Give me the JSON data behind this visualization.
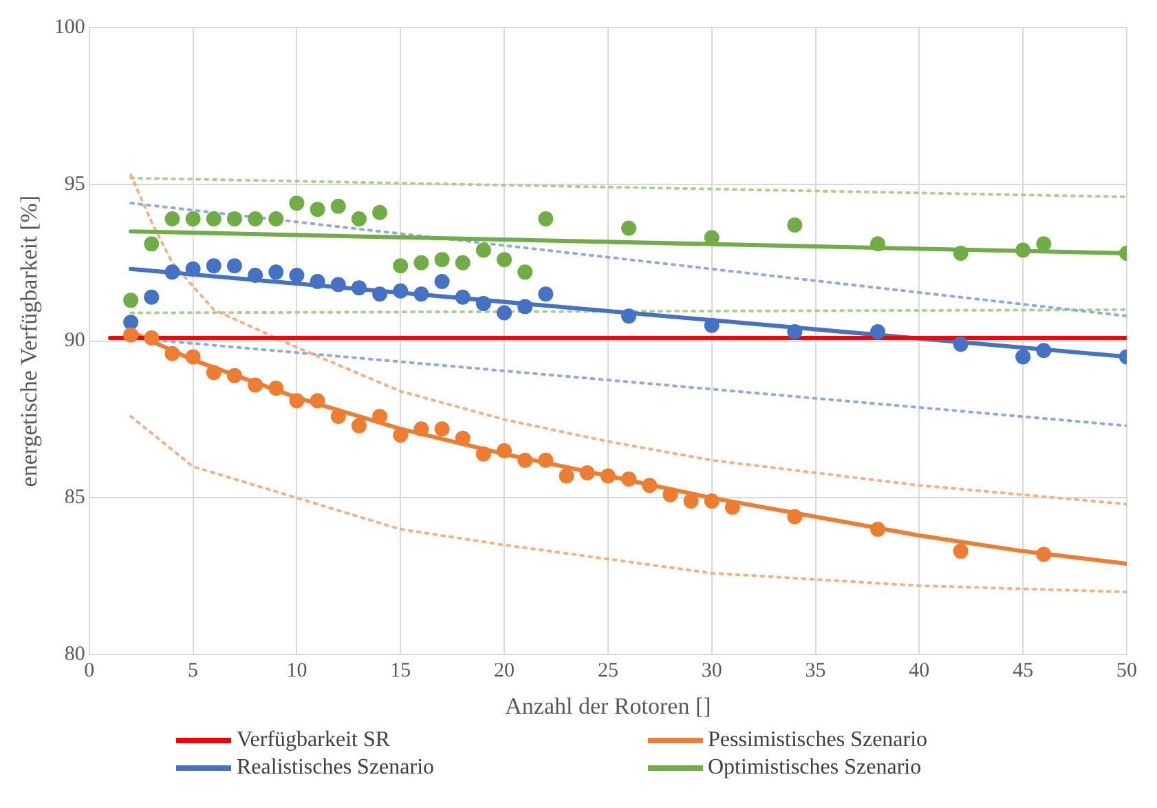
{
  "chart_data": {
    "type": "scatter",
    "xlabel": "Anzahl der Rotoren []",
    "ylabel": "energetische Verfügbarkeit [%]",
    "xlim": [
      0,
      50
    ],
    "xticks": [
      0,
      5,
      10,
      15,
      20,
      25,
      30,
      35,
      40,
      45,
      50
    ],
    "ylim": [
      80,
      100
    ],
    "yticks": [
      80,
      85,
      90,
      95,
      100
    ],
    "grid": true,
    "legend": "bottom",
    "series": [
      {
        "name": "Verfügbarkeit SR",
        "type": "line",
        "marker": "none",
        "line_style": "solid",
        "color": "#ff0000",
        "x": [
          1,
          50
        ],
        "values": [
          90.1,
          90.1
        ]
      },
      {
        "name": "Pessimistisches Szenario",
        "type": "line",
        "marker": "none",
        "line_style": "solid",
        "color": "#ed7d31",
        "x": [
          2,
          5,
          10,
          15,
          20,
          25,
          30,
          35,
          40,
          45,
          50
        ],
        "values": [
          90.3,
          89.4,
          88.2,
          87.2,
          86.4,
          85.7,
          85.0,
          84.4,
          83.8,
          83.3,
          82.9
        ]
      },
      {
        "name": "Realistisches Szenario",
        "type": "line",
        "marker": "none",
        "line_style": "solid",
        "color": "#4472c4",
        "x": [
          2,
          50
        ],
        "values": [
          92.3,
          89.5
        ]
      },
      {
        "name": "Optimistisches Szenario",
        "type": "line",
        "marker": "none",
        "line_style": "solid",
        "color": "#70ad47",
        "x": [
          2,
          50
        ],
        "values": [
          93.5,
          92.8
        ]
      },
      {
        "type": "scatter",
        "marker": "circle",
        "color": "#ed7d31",
        "x": [
          2,
          3,
          4,
          5,
          6,
          7,
          8,
          9,
          10,
          11,
          12,
          13,
          14,
          15,
          16,
          17,
          18,
          19,
          20,
          21,
          22,
          23,
          24,
          25,
          26,
          27,
          28,
          29,
          30,
          31,
          34,
          38,
          42,
          46
        ],
        "values": [
          90.2,
          90.1,
          89.6,
          89.5,
          89.0,
          88.9,
          88.6,
          88.5,
          88.1,
          88.1,
          87.6,
          87.3,
          87.6,
          87.0,
          87.2,
          87.2,
          86.9,
          86.4,
          86.5,
          86.2,
          86.2,
          85.7,
          85.8,
          85.7,
          85.6,
          85.4,
          85.1,
          84.9,
          84.9,
          84.7,
          84.4,
          84.0,
          83.3,
          83.2
        ]
      },
      {
        "type": "scatter",
        "marker": "circle",
        "color": "#4472c4",
        "x": [
          2,
          3,
          4,
          5,
          6,
          7,
          8,
          9,
          10,
          11,
          12,
          13,
          14,
          15,
          16,
          17,
          18,
          19,
          20,
          21,
          22,
          26,
          30,
          34,
          38,
          42,
          45,
          46,
          50
        ],
        "values": [
          90.6,
          91.4,
          92.2,
          92.3,
          92.4,
          92.4,
          92.1,
          92.2,
          92.1,
          91.9,
          91.8,
          91.7,
          91.5,
          91.6,
          91.5,
          91.9,
          91.4,
          91.2,
          90.9,
          91.1,
          91.5,
          90.8,
          90.5,
          90.3,
          90.3,
          89.9,
          89.5,
          89.7,
          89.5
        ]
      },
      {
        "type": "scatter",
        "marker": "circle",
        "color": "#70ad47",
        "x": [
          2,
          3,
          4,
          5,
          6,
          7,
          8,
          9,
          10,
          11,
          12,
          13,
          14,
          15,
          16,
          17,
          18,
          19,
          20,
          21,
          22,
          26,
          30,
          34,
          38,
          42,
          45,
          46,
          50
        ],
        "values": [
          91.3,
          93.1,
          93.9,
          93.9,
          93.9,
          93.9,
          93.9,
          93.9,
          94.4,
          94.2,
          94.3,
          93.9,
          94.1,
          92.4,
          92.5,
          92.6,
          92.5,
          92.9,
          92.6,
          92.2,
          93.9,
          93.6,
          93.3,
          93.7,
          93.1,
          92.8,
          92.9,
          93.1,
          92.8
        ]
      },
      {
        "type": "line",
        "marker": "none",
        "line_style": "dotted",
        "color": "#f4b183",
        "x": [
          2,
          3,
          4,
          6,
          10,
          15,
          20,
          25,
          30,
          40,
          50
        ],
        "values": [
          95.3,
          93.8,
          92.5,
          91.0,
          89.8,
          88.4,
          87.5,
          86.8,
          86.2,
          85.4,
          84.8
        ]
      },
      {
        "type": "line",
        "marker": "none",
        "line_style": "dotted",
        "color": "#f4b183",
        "x": [
          2,
          5,
          10,
          15,
          20,
          30,
          40,
          50
        ],
        "values": [
          87.6,
          86.0,
          85.0,
          84.0,
          83.5,
          82.6,
          82.2,
          82.0
        ]
      },
      {
        "type": "line",
        "marker": "none",
        "line_style": "dotted",
        "color": "#8faadc",
        "x": [
          2,
          50
        ],
        "values": [
          94.4,
          90.8
        ]
      },
      {
        "type": "line",
        "marker": "none",
        "line_style": "dotted",
        "color": "#8faadc",
        "x": [
          2,
          50
        ],
        "values": [
          90.1,
          87.3
        ]
      },
      {
        "type": "line",
        "marker": "none",
        "line_style": "dotted",
        "color": "#a9d18e",
        "x": [
          2,
          50
        ],
        "values": [
          95.2,
          94.6
        ]
      },
      {
        "type": "line",
        "marker": "none",
        "line_style": "dotted",
        "color": "#a9d18e",
        "x": [
          2,
          50
        ],
        "values": [
          90.9,
          91.0
        ]
      }
    ]
  }
}
